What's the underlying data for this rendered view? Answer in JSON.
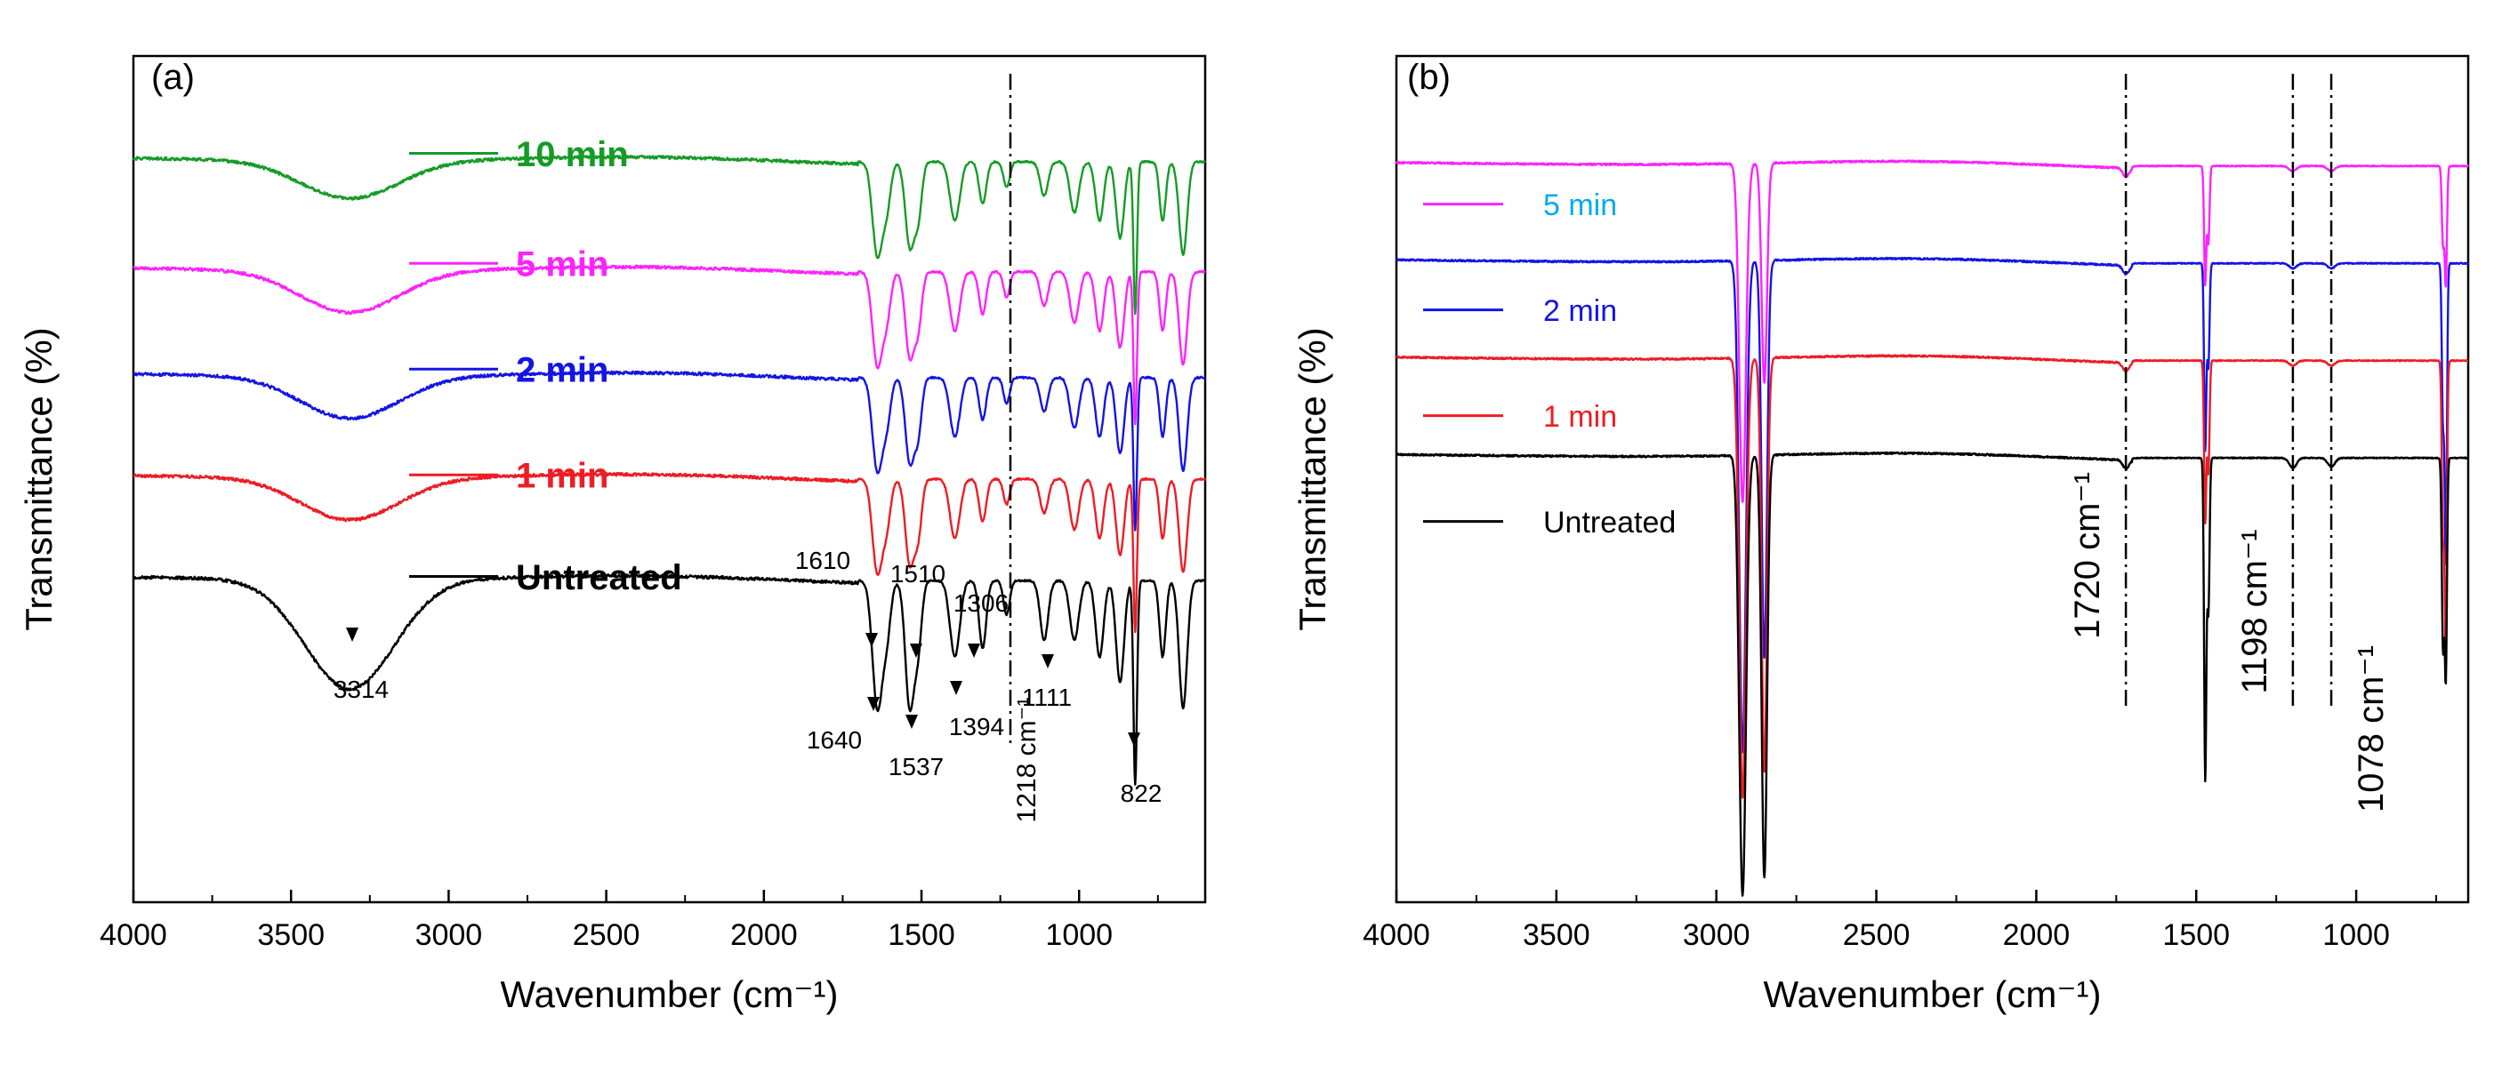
{
  "chart_data": [
    {
      "type": "line",
      "panel_label": "(a)",
      "xlabel": "Wavenumber (cm⁻¹)",
      "ylabel": "Transmittance (%)",
      "xlim": [
        4000,
        600
      ],
      "ylim": [
        0,
        100
      ],
      "x_ticks": [
        4000,
        3500,
        3000,
        2500,
        2000,
        1500,
        1000
      ],
      "series": [
        {
          "name": "10 min",
          "color": "#169b27",
          "offset": 87.5,
          "legend_y": 88.5,
          "peaks": [
            [
              3314,
              4.5,
              220
            ],
            [
              1640,
              11,
              22
            ],
            [
              1610,
              5,
              18
            ],
            [
              1537,
              10,
              20
            ],
            [
              1510,
              6,
              16
            ],
            [
              1394,
              7,
              22
            ],
            [
              1306,
              5,
              16
            ],
            [
              1230,
              3,
              14
            ],
            [
              1111,
              4,
              18
            ],
            [
              1015,
              6,
              20
            ],
            [
              935,
              7,
              18
            ],
            [
              870,
              9,
              18
            ],
            [
              822,
              18,
              8
            ],
            [
              735,
              7,
              14
            ],
            [
              670,
              11,
              18
            ]
          ]
        },
        {
          "name": "5 min",
          "color": "#ff22ff",
          "offset": 74.5,
          "legend_y": 75.5,
          "peaks": [
            [
              3314,
              5,
              220
            ],
            [
              1640,
              11,
              22
            ],
            [
              1610,
              5,
              18
            ],
            [
              1537,
              10,
              20
            ],
            [
              1510,
              6,
              16
            ],
            [
              1394,
              7,
              22
            ],
            [
              1306,
              5,
              16
            ],
            [
              1230,
              3,
              14
            ],
            [
              1111,
              4,
              18
            ],
            [
              1015,
              6,
              20
            ],
            [
              935,
              7,
              18
            ],
            [
              870,
              9,
              18
            ],
            [
              822,
              18,
              8
            ],
            [
              735,
              7,
              14
            ],
            [
              670,
              11,
              18
            ]
          ]
        },
        {
          "name": "2 min",
          "color": "#1414e6",
          "offset": 62,
          "legend_y": 63,
          "peaks": [
            [
              3314,
              5,
              220
            ],
            [
              1640,
              11,
              22
            ],
            [
              1610,
              5,
              18
            ],
            [
              1537,
              10,
              20
            ],
            [
              1510,
              6,
              16
            ],
            [
              1394,
              7,
              22
            ],
            [
              1306,
              5,
              16
            ],
            [
              1230,
              3,
              14
            ],
            [
              1111,
              4,
              18
            ],
            [
              1015,
              6,
              20
            ],
            [
              935,
              7,
              18
            ],
            [
              870,
              9,
              18
            ],
            [
              822,
              18,
              8
            ],
            [
              735,
              7,
              14
            ],
            [
              670,
              11,
              18
            ]
          ]
        },
        {
          "name": "1 min",
          "color": "#ee1c24",
          "offset": 50,
          "legend_y": 50.5,
          "peaks": [
            [
              3314,
              5,
              220
            ],
            [
              1640,
              11,
              22
            ],
            [
              1610,
              5,
              18
            ],
            [
              1537,
              10,
              20
            ],
            [
              1510,
              6,
              16
            ],
            [
              1394,
              7,
              22
            ],
            [
              1306,
              5,
              16
            ],
            [
              1230,
              3,
              14
            ],
            [
              1111,
              4,
              18
            ],
            [
              1015,
              6,
              20
            ],
            [
              935,
              7,
              18
            ],
            [
              870,
              9,
              18
            ],
            [
              822,
              18,
              8
            ],
            [
              735,
              7,
              14
            ],
            [
              670,
              11,
              18
            ]
          ]
        },
        {
          "name": "Untreated",
          "color": "#000000",
          "offset": 38,
          "legend_y": 38.5,
          "peaks": [
            [
              3314,
              13,
              200
            ],
            [
              1640,
              15,
              22
            ],
            [
              1610,
              6,
              18
            ],
            [
              1537,
              15,
              20
            ],
            [
              1510,
              7,
              16
            ],
            [
              1394,
              9,
              22
            ],
            [
              1306,
              8,
              16
            ],
            [
              1230,
              4,
              14
            ],
            [
              1111,
              7,
              18
            ],
            [
              1015,
              7,
              20
            ],
            [
              935,
              9,
              18
            ],
            [
              870,
              12,
              18
            ],
            [
              822,
              24,
              8
            ],
            [
              735,
              9,
              14
            ],
            [
              670,
              15,
              18
            ]
          ]
        }
      ],
      "dashed_lines": [
        {
          "x": 1218,
          "label": "1218 cm⁻¹"
        }
      ],
      "annotations": [
        {
          "text": "3314",
          "x": 3314
        },
        {
          "text": "1640",
          "x": 1640
        },
        {
          "text": "1610",
          "x": 1610
        },
        {
          "text": "1537",
          "x": 1537
        },
        {
          "text": "1510",
          "x": 1510
        },
        {
          "text": "1394",
          "x": 1394
        },
        {
          "text": "1306",
          "x": 1306
        },
        {
          "text": "1111",
          "x": 1111
        },
        {
          "text": "822",
          "x": 822
        }
      ]
    },
    {
      "type": "line",
      "panel_label": "(b)",
      "xlabel": "Wavenumber (cm⁻¹)",
      "ylabel": "Transmittance (%)",
      "xlim": [
        4000,
        650
      ],
      "ylim": [
        0,
        100
      ],
      "x_ticks": [
        4000,
        3500,
        3000,
        2500,
        2000,
        1500,
        1000
      ],
      "series": [
        {
          "name": "5 min",
          "color": "#ff22ff",
          "legend_text_color": "#00aaee",
          "offset": 87,
          "legend_y": 82.5,
          "peaks": [
            [
              2918,
              40,
              15
            ],
            [
              2850,
              26,
              12
            ],
            [
              1472,
              14,
              5
            ],
            [
              1462,
              9,
              5
            ],
            [
              1720,
              1,
              14
            ],
            [
              1198,
              0.6,
              16
            ],
            [
              1078,
              0.6,
              16
            ],
            [
              720,
              14,
              5
            ],
            [
              729,
              9,
              5
            ]
          ]
        },
        {
          "name": "2 min",
          "color": "#1414e6",
          "offset": 75.5,
          "legend_y": 70,
          "peaks": [
            [
              2918,
              58,
              15
            ],
            [
              2850,
              47,
              12
            ],
            [
              1472,
              22,
              5
            ],
            [
              1462,
              12,
              5
            ],
            [
              1720,
              1,
              14
            ],
            [
              1198,
              0.6,
              16
            ],
            [
              1078,
              0.6,
              16
            ],
            [
              720,
              35,
              5
            ],
            [
              729,
              18,
              5
            ]
          ]
        },
        {
          "name": "1 min",
          "color": "#ee1c24",
          "offset": 64,
          "legend_y": 57.5,
          "peaks": [
            [
              2918,
              52,
              15
            ],
            [
              2850,
              49,
              12
            ],
            [
              1472,
              19,
              5
            ],
            [
              1462,
              13,
              5
            ],
            [
              1720,
              1,
              14
            ],
            [
              1198,
              0.6,
              16
            ],
            [
              1078,
              0.6,
              16
            ],
            [
              720,
              35,
              5
            ],
            [
              729,
              20,
              5
            ]
          ]
        },
        {
          "name": "Untreated",
          "color": "#000000",
          "offset": 52.5,
          "legend_y": 45,
          "peaks": [
            [
              2918,
              52,
              15
            ],
            [
              2850,
              50,
              12
            ],
            [
              1472,
              38,
              5
            ],
            [
              1462,
              18,
              5
            ],
            [
              1720,
              1,
              14
            ],
            [
              1198,
              1.2,
              16
            ],
            [
              1078,
              1,
              16
            ],
            [
              720,
              26,
              5
            ],
            [
              729,
              22,
              5
            ]
          ]
        }
      ],
      "dashed_lines": [
        {
          "x": 1720,
          "label": "1720 cm⁻¹"
        },
        {
          "x": 1198,
          "label": "1198 cm⁻¹"
        },
        {
          "x": 1078,
          "label": "1078 cm⁻¹"
        }
      ],
      "annotations": []
    }
  ]
}
